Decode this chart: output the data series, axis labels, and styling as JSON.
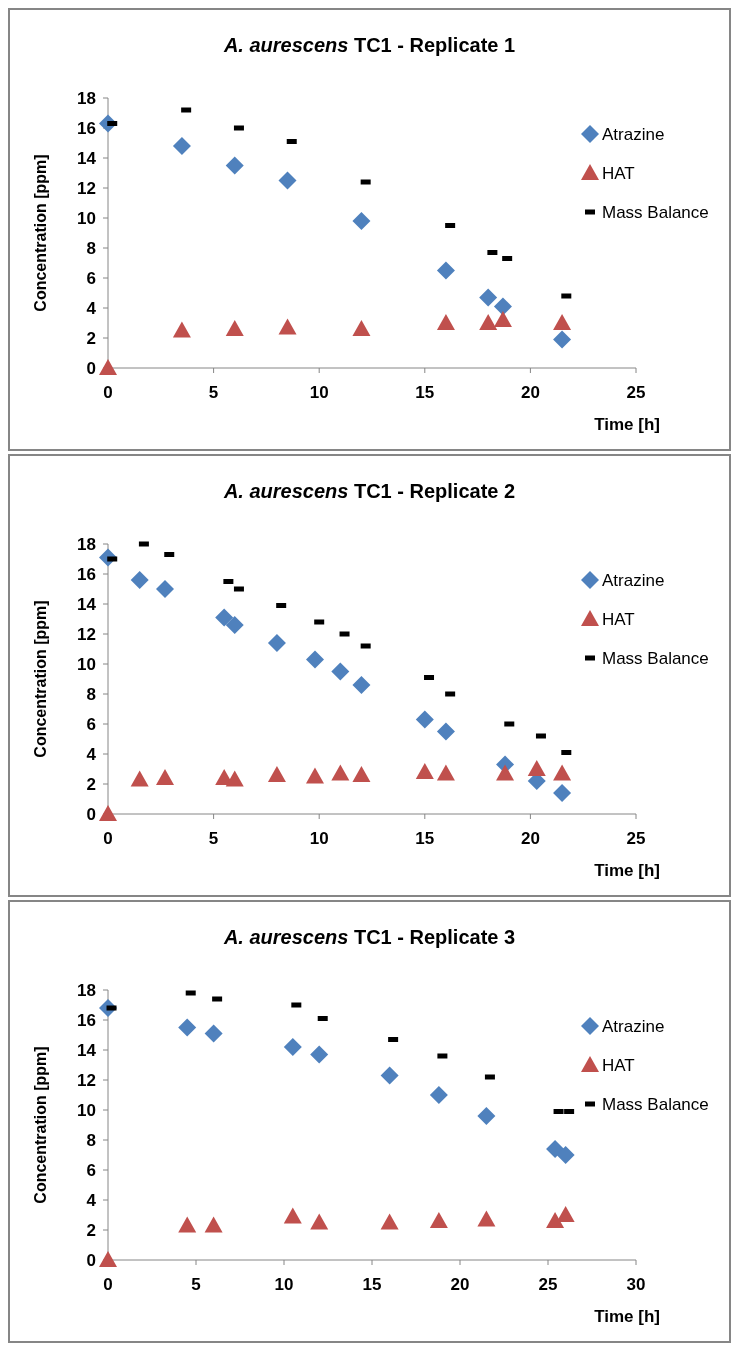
{
  "chart_data": [
    {
      "type": "scatter",
      "title": "A. aurescens TC1 - Replicate 1",
      "xlabel": "Time [h]",
      "ylabel": "Concentration [ppm]",
      "xlim": [
        0,
        25
      ],
      "xticks": [
        0,
        5,
        10,
        15,
        20,
        25
      ],
      "ylim": [
        0,
        18
      ],
      "yticks": [
        0,
        2,
        4,
        6,
        8,
        10,
        12,
        14,
        16,
        18
      ],
      "grid": false,
      "legend": "right",
      "series": [
        {
          "name": "Atrazine",
          "color": "#4f81bd",
          "marker": "diamond",
          "x": [
            0,
            3.5,
            6,
            8.5,
            12,
            16,
            18,
            18.7,
            21.5
          ],
          "values": [
            16.3,
            14.8,
            13.5,
            12.5,
            9.8,
            6.5,
            4.7,
            4.1,
            1.9
          ]
        },
        {
          "name": "HAT",
          "color": "#c0504d",
          "marker": "triangle",
          "x": [
            0,
            3.5,
            6,
            8.5,
            12,
            16,
            18,
            18.7,
            21.5
          ],
          "values": [
            0,
            2.5,
            2.6,
            2.7,
            2.6,
            3.0,
            3.0,
            3.2,
            3.0
          ]
        },
        {
          "name": "Mass Balance",
          "color": "#000000",
          "marker": "square",
          "x": [
            0.2,
            3.7,
            6.2,
            8.7,
            12.2,
            16.2,
            18.2,
            18.9,
            21.7
          ],
          "values": [
            16.3,
            17.2,
            16.0,
            15.1,
            12.4,
            9.5,
            7.7,
            7.3,
            4.8
          ]
        }
      ]
    },
    {
      "type": "scatter",
      "title": "A. aurescens TC1 - Replicate 2",
      "xlabel": "Time [h]",
      "ylabel": "Concentration [ppm]",
      "xlim": [
        0,
        25
      ],
      "xticks": [
        0,
        5,
        10,
        15,
        20,
        25
      ],
      "ylim": [
        0,
        18
      ],
      "yticks": [
        0,
        2,
        4,
        6,
        8,
        10,
        12,
        14,
        16,
        18
      ],
      "grid": false,
      "legend": "right",
      "series": [
        {
          "name": "Atrazine",
          "color": "#4f81bd",
          "marker": "diamond",
          "x": [
            0,
            1.5,
            2.7,
            5.5,
            6,
            8,
            9.8,
            11,
            12,
            15,
            16,
            18.8,
            20.3,
            21.5
          ],
          "values": [
            17.1,
            15.6,
            15.0,
            13.1,
            12.6,
            11.4,
            10.3,
            9.5,
            8.6,
            6.3,
            5.5,
            3.3,
            2.2,
            1.4
          ]
        },
        {
          "name": "HAT",
          "color": "#c0504d",
          "marker": "triangle",
          "x": [
            0,
            1.5,
            2.7,
            5.5,
            6,
            8,
            9.8,
            11,
            12,
            15,
            16,
            18.8,
            20.3,
            21.5
          ],
          "values": [
            0,
            2.3,
            2.4,
            2.4,
            2.3,
            2.6,
            2.5,
            2.7,
            2.6,
            2.8,
            2.7,
            2.7,
            3.0,
            2.7
          ]
        },
        {
          "name": "Mass Balance",
          "color": "#000000",
          "marker": "square",
          "x": [
            0.2,
            1.7,
            2.9,
            5.7,
            6.2,
            8.2,
            10,
            11.2,
            12.2,
            15.2,
            16.2,
            19,
            20.5,
            21.7
          ],
          "values": [
            17.0,
            18.0,
            17.3,
            15.5,
            15.0,
            13.9,
            12.8,
            12.0,
            11.2,
            9.1,
            8.0,
            6.0,
            5.2,
            4.1
          ]
        }
      ]
    },
    {
      "type": "scatter",
      "title": "A. aurescens TC1 - Replicate 3",
      "xlabel": "Time [h]",
      "ylabel": "Concentration [ppm]",
      "xlim": [
        0,
        30
      ],
      "xticks": [
        0,
        5,
        10,
        15,
        20,
        25,
        30
      ],
      "ylim": [
        0,
        18
      ],
      "yticks": [
        0,
        2,
        4,
        6,
        8,
        10,
        12,
        14,
        16,
        18
      ],
      "grid": false,
      "legend": "right",
      "series": [
        {
          "name": "Atrazine",
          "color": "#4f81bd",
          "marker": "diamond",
          "x": [
            0,
            4.5,
            6,
            10.5,
            12,
            16,
            18.8,
            21.5,
            25.4,
            26
          ],
          "values": [
            16.8,
            15.5,
            15.1,
            14.2,
            13.7,
            12.3,
            11.0,
            9.6,
            7.4,
            7.0
          ]
        },
        {
          "name": "HAT",
          "color": "#c0504d",
          "marker": "triangle",
          "x": [
            0,
            4.5,
            6,
            10.5,
            12,
            16,
            18.8,
            21.5,
            25.4,
            26
          ],
          "values": [
            0,
            2.3,
            2.3,
            2.9,
            2.5,
            2.5,
            2.6,
            2.7,
            2.6,
            3.0
          ]
        },
        {
          "name": "Mass Balance",
          "color": "#000000",
          "marker": "square",
          "x": [
            0.2,
            4.7,
            6.2,
            10.7,
            12.2,
            16.2,
            19,
            21.7,
            25.6,
            26.2
          ],
          "values": [
            16.8,
            17.8,
            17.4,
            17.0,
            16.1,
            14.7,
            13.6,
            12.2,
            9.9,
            9.9
          ]
        }
      ]
    }
  ]
}
